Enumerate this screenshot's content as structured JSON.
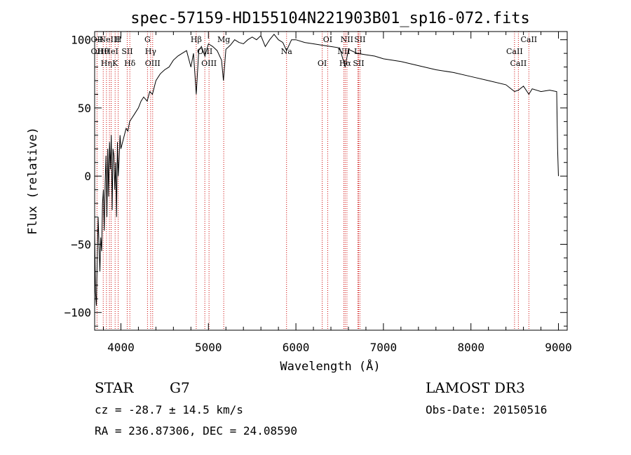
{
  "chart_data": {
    "type": "line",
    "title": "spec-57159-HD155104N221903B01_sp16-072.fits",
    "xlabel": "Wavelength (Å)",
    "ylabel": "Flux (relative)",
    "xlim": [
      3700,
      9100
    ],
    "ylim": [
      -113,
      106
    ],
    "x_ticks": [
      4000,
      5000,
      6000,
      7000,
      8000,
      9000
    ],
    "y_ticks": [
      -100,
      -50,
      0,
      50,
      100
    ],
    "grid": false,
    "series": [
      {
        "x": [
          3700,
          3710,
          3720,
          3730,
          3740,
          3750,
          3760,
          3770,
          3780,
          3790,
          3800,
          3810,
          3820,
          3830,
          3840,
          3850,
          3860,
          3870,
          3880,
          3890,
          3900,
          3910,
          3920,
          3930,
          3940,
          3950,
          3960,
          3970,
          3980,
          3990,
          4000,
          4020,
          4040,
          4060,
          4080,
          4100,
          4120,
          4150,
          4180,
          4200,
          4230,
          4260,
          4300,
          4330,
          4360,
          4400,
          4450,
          4500,
          4550,
          4600,
          4650,
          4700,
          4750,
          4800,
          4830,
          4861,
          4890,
          4920,
          4960,
          5000,
          5050,
          5100,
          5150,
          5172,
          5200,
          5250,
          5300,
          5350,
          5400,
          5450,
          5500,
          5550,
          5600,
          5650,
          5700,
          5750,
          5800,
          5850,
          5893,
          5950,
          6000,
          6100,
          6200,
          6300,
          6400,
          6500,
          6563,
          6600,
          6700,
          6800,
          6900,
          7000,
          7200,
          7400,
          7600,
          7800,
          8000,
          8200,
          8400,
          8498,
          8542,
          8600,
          8662,
          8700,
          8800,
          8900,
          8980,
          8990,
          9000
        ],
        "y": [
          -40,
          -85,
          -95,
          -60,
          -30,
          -50,
          -70,
          -45,
          -55,
          -20,
          -10,
          -40,
          -5,
          15,
          -30,
          20,
          -15,
          25,
          5,
          30,
          -25,
          20,
          15,
          -10,
          10,
          -30,
          25,
          0,
          12,
          30,
          20,
          25,
          30,
          35,
          33,
          40,
          42,
          45,
          48,
          50,
          55,
          58,
          55,
          62,
          60,
          70,
          75,
          78,
          80,
          85,
          88,
          90,
          92,
          80,
          90,
          60,
          92,
          95,
          88,
          97,
          95,
          92,
          85,
          70,
          93,
          96,
          100,
          98,
          97,
          100,
          102,
          100,
          103,
          95,
          100,
          104,
          100,
          98,
          92,
          100,
          100,
          98,
          97,
          96,
          95,
          94,
          80,
          93,
          90,
          89,
          88,
          86,
          84,
          81,
          78,
          76,
          73,
          70,
          67,
          62,
          63,
          66,
          60,
          64,
          62,
          63,
          62,
          20,
          0
        ]
      }
    ],
    "lines": [
      {
        "wl": 3727,
        "labels": [
          "OII",
          "OII"
        ]
      },
      {
        "wl": 3798,
        "labels": [
          "Hθ"
        ]
      },
      {
        "wl": 3835,
        "labels": [
          "Hη"
        ]
      },
      {
        "wl": 3869,
        "labels": [
          "NeIII"
        ]
      },
      {
        "wl": 3889,
        "labels": [
          "HeI"
        ]
      },
      {
        "wl": 3934,
        "labels": [
          "K"
        ]
      },
      {
        "wl": 3969,
        "labels": [
          "H"
        ]
      },
      {
        "wl": 4072,
        "labels": [
          "SII"
        ]
      },
      {
        "wl": 4102,
        "labels": [
          "Hδ"
        ]
      },
      {
        "wl": 4304,
        "labels": [
          "G"
        ]
      },
      {
        "wl": 4340,
        "labels": [
          "Hγ"
        ]
      },
      {
        "wl": 4363,
        "labels": [
          "OIII"
        ]
      },
      {
        "wl": 4861,
        "labels": [
          "Hβ"
        ]
      },
      {
        "wl": 4959,
        "labels": [
          "OIII"
        ]
      },
      {
        "wl": 5007,
        "labels": [
          "OIII"
        ]
      },
      {
        "wl": 5175,
        "labels": [
          "Mg"
        ]
      },
      {
        "wl": 5893,
        "labels": [
          "Na"
        ]
      },
      {
        "wl": 6300,
        "labels": [
          "OI"
        ]
      },
      {
        "wl": 6363,
        "labels": [
          "OI"
        ]
      },
      {
        "wl": 6548,
        "labels": [
          "NII"
        ]
      },
      {
        "wl": 6563,
        "labels": [
          "Hα"
        ]
      },
      {
        "wl": 6583,
        "labels": [
          "NII"
        ]
      },
      {
        "wl": 6708,
        "labels": [
          "Li"
        ]
      },
      {
        "wl": 6716,
        "labels": [
          "SII"
        ]
      },
      {
        "wl": 6731,
        "labels": [
          "SII"
        ]
      },
      {
        "wl": 8498,
        "labels": [
          "CaII"
        ]
      },
      {
        "wl": 8542,
        "labels": [
          "CaII"
        ]
      },
      {
        "wl": 8662,
        "labels": [
          "CaII"
        ]
      }
    ],
    "line_color": "#cc0000"
  },
  "info": {
    "class": "STAR",
    "subclass": "G7",
    "cz": "cz = -28.7 ± 14.5 km/s",
    "radec": "RA = 236.87306, DEC =  24.08590",
    "survey": "LAMOST DR3",
    "obsdate": "Obs-Date: 20150516"
  }
}
